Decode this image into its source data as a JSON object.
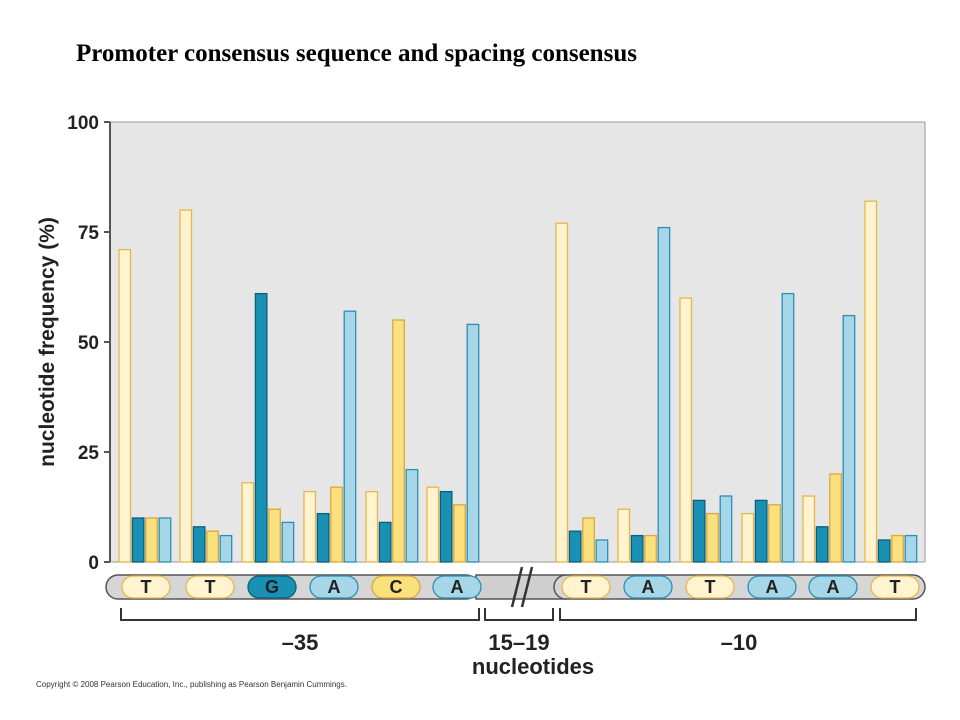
{
  "title": "Promoter consensus sequence and spacing consensus",
  "copyright": "Copyright © 2008 Pearson Education, Inc., publishing as Pearson Benjamin Cummings.",
  "colors": {
    "plot_background": "#e6e6e6",
    "series_T": "#fff4cf",
    "series_T_stroke": "#e8b64a",
    "series_G": "#1a91b4",
    "series_G_stroke": "#0c5f78",
    "series_C": "#fbe07e",
    "series_C_stroke": "#d9a83a",
    "series_A": "#a6d6e8",
    "series_A_stroke": "#2d8fb4"
  },
  "chart_data": {
    "type": "bar",
    "ylabel": "nucleotide frequency (%)",
    "ylim": [
      0,
      100
    ],
    "yticks": [
      0,
      25,
      50,
      75,
      100
    ],
    "grid": false,
    "legend": "none",
    "series_order": [
      "T",
      "G",
      "C",
      "A"
    ],
    "positions": [
      {
        "base": "T",
        "values": [
          71,
          10,
          10,
          10
        ]
      },
      {
        "base": "T",
        "values": [
          80,
          8,
          7,
          6
        ]
      },
      {
        "base": "G",
        "values": [
          18,
          61,
          12,
          9
        ]
      },
      {
        "base": "A",
        "values": [
          16,
          11,
          17,
          57
        ]
      },
      {
        "base": "C",
        "values": [
          16,
          9,
          55,
          21
        ]
      },
      {
        "base": "A",
        "values": [
          17,
          16,
          13,
          54
        ]
      },
      {
        "base": "T",
        "values": [
          77,
          7,
          10,
          5
        ]
      },
      {
        "base": "A",
        "values": [
          12,
          6,
          6,
          76
        ]
      },
      {
        "base": "T",
        "values": [
          60,
          14,
          11,
          15
        ]
      },
      {
        "base": "A",
        "values": [
          11,
          14,
          13,
          61
        ]
      },
      {
        "base": "A",
        "values": [
          15,
          8,
          20,
          56
        ]
      },
      {
        "base": "T",
        "values": [
          82,
          5,
          6,
          6
        ]
      }
    ],
    "spacer_label": "15–19",
    "spacer_sublabel": "nucleotides",
    "region_labels": [
      "–35",
      "–10"
    ]
  }
}
